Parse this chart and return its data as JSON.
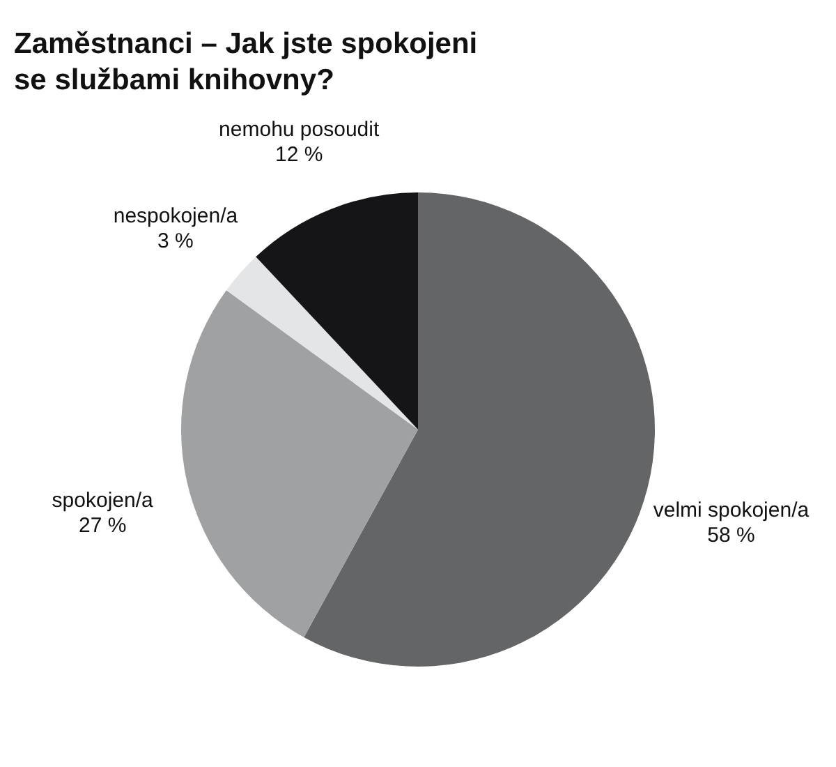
{
  "chart_data": {
    "type": "pie",
    "title": "Zaměstnanci – Jak jste spokojeni se službami knihovny?",
    "categories": [
      "velmi spokojen/a",
      "spokojen/a",
      "nespokojen/a",
      "nemohu posoudit"
    ],
    "values": [
      58,
      27,
      3,
      12
    ],
    "value_labels": [
      "58 %",
      "27 %",
      "3 %",
      "12 %"
    ],
    "colors": [
      "#646566",
      "#a0a1a2",
      "#e4e5e6",
      "#151518"
    ],
    "legend": false
  }
}
